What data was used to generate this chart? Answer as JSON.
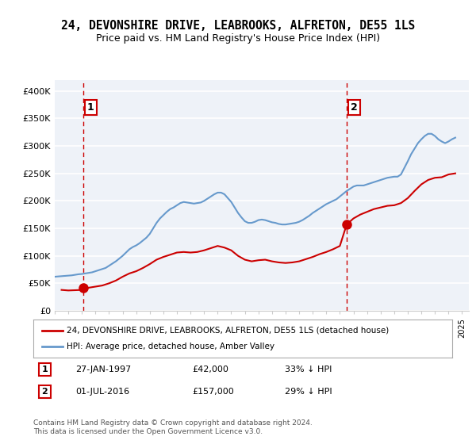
{
  "title": "24, DEVONSHIRE DRIVE, LEABROOKS, ALFRETON, DE55 1LS",
  "subtitle": "Price paid vs. HM Land Registry's House Price Index (HPI)",
  "title_fontsize": 10.5,
  "subtitle_fontsize": 9,
  "ylabel_values": [
    0,
    50000,
    100000,
    150000,
    200000,
    250000,
    300000,
    350000,
    400000
  ],
  "ylabel_labels": [
    "£0",
    "£50K",
    "£100K",
    "£150K",
    "£200K",
    "£250K",
    "£300K",
    "£350K",
    "£400K"
  ],
  "ylim": [
    0,
    420000
  ],
  "xlim_start": 1995.0,
  "xlim_end": 2025.5,
  "purchase1_date": 1997.08,
  "purchase1_price": 42000,
  "purchase1_label": "1",
  "purchase2_date": 2016.5,
  "purchase2_price": 157000,
  "purchase2_label": "2",
  "property_color": "#cc0000",
  "hpi_color": "#6699cc",
  "dashed_color": "#cc0000",
  "bg_color": "#eef2f8",
  "grid_color": "#ffffff",
  "legend1_text": "24, DEVONSHIRE DRIVE, LEABROOKS, ALFRETON, DE55 1LS (detached house)",
  "legend2_text": "HPI: Average price, detached house, Amber Valley",
  "info1_num": "1",
  "info1_date": "27-JAN-1997",
  "info1_price": "£42,000",
  "info1_hpi": "33% ↓ HPI",
  "info2_num": "2",
  "info2_date": "01-JUL-2016",
  "info2_price": "£157,000",
  "info2_hpi": "29% ↓ HPI",
  "footnote": "Contains HM Land Registry data © Crown copyright and database right 2024.\nThis data is licensed under the Open Government Licence v3.0.",
  "hpi_x": [
    1995.0,
    1995.25,
    1995.5,
    1995.75,
    1996.0,
    1996.25,
    1996.5,
    1996.75,
    1997.0,
    1997.25,
    1997.5,
    1997.75,
    1998.0,
    1998.25,
    1998.5,
    1998.75,
    1999.0,
    1999.25,
    1999.5,
    1999.75,
    2000.0,
    2000.25,
    2000.5,
    2000.75,
    2001.0,
    2001.25,
    2001.5,
    2001.75,
    2002.0,
    2002.25,
    2002.5,
    2002.75,
    2003.0,
    2003.25,
    2003.5,
    2003.75,
    2004.0,
    2004.25,
    2004.5,
    2004.75,
    2005.0,
    2005.25,
    2005.5,
    2005.75,
    2006.0,
    2006.25,
    2006.5,
    2006.75,
    2007.0,
    2007.25,
    2007.5,
    2007.75,
    2008.0,
    2008.25,
    2008.5,
    2008.75,
    2009.0,
    2009.25,
    2009.5,
    2009.75,
    2010.0,
    2010.25,
    2010.5,
    2010.75,
    2011.0,
    2011.25,
    2011.5,
    2011.75,
    2012.0,
    2012.25,
    2012.5,
    2012.75,
    2013.0,
    2013.25,
    2013.5,
    2013.75,
    2014.0,
    2014.25,
    2014.5,
    2014.75,
    2015.0,
    2015.25,
    2015.5,
    2015.75,
    2016.0,
    2016.25,
    2016.5,
    2016.75,
    2017.0,
    2017.25,
    2017.5,
    2017.75,
    2018.0,
    2018.25,
    2018.5,
    2018.75,
    2019.0,
    2019.25,
    2019.5,
    2019.75,
    2020.0,
    2020.25,
    2020.5,
    2020.75,
    2021.0,
    2021.25,
    2021.5,
    2021.75,
    2022.0,
    2022.25,
    2022.5,
    2022.75,
    2023.0,
    2023.25,
    2023.5,
    2023.75,
    2024.0,
    2024.25,
    2024.5
  ],
  "hpi_y": [
    62000,
    62500,
    63000,
    63500,
    64000,
    64500,
    65500,
    66500,
    67000,
    68000,
    69000,
    70000,
    72000,
    74000,
    76000,
    78000,
    82000,
    86000,
    90000,
    95000,
    100000,
    106000,
    112000,
    116000,
    119000,
    123000,
    128000,
    133000,
    140000,
    150000,
    160000,
    168000,
    174000,
    180000,
    185000,
    188000,
    192000,
    196000,
    198000,
    197000,
    196000,
    195000,
    196000,
    197000,
    200000,
    204000,
    208000,
    212000,
    215000,
    215000,
    212000,
    205000,
    198000,
    188000,
    178000,
    170000,
    163000,
    160000,
    160000,
    162000,
    165000,
    166000,
    165000,
    163000,
    161000,
    160000,
    158000,
    157000,
    157000,
    158000,
    159000,
    160000,
    162000,
    165000,
    169000,
    173000,
    178000,
    182000,
    186000,
    190000,
    194000,
    197000,
    200000,
    203000,
    208000,
    213000,
    218000,
    222000,
    226000,
    228000,
    228000,
    228000,
    230000,
    232000,
    234000,
    236000,
    238000,
    240000,
    242000,
    243000,
    244000,
    244000,
    248000,
    260000,
    272000,
    285000,
    295000,
    305000,
    312000,
    318000,
    322000,
    322000,
    318000,
    312000,
    308000,
    305000,
    308000,
    312000,
    315000
  ],
  "prop_x": [
    1995.5,
    1996.0,
    1996.5,
    1997.0,
    1997.5,
    1998.0,
    1998.5,
    1999.0,
    1999.5,
    2000.0,
    2000.5,
    2001.0,
    2001.5,
    2002.0,
    2002.5,
    2003.0,
    2003.5,
    2004.0,
    2004.5,
    2005.0,
    2005.5,
    2006.0,
    2006.5,
    2007.0,
    2007.5,
    2008.0,
    2008.5,
    2009.0,
    2009.5,
    2010.0,
    2010.5,
    2011.0,
    2011.5,
    2012.0,
    2012.5,
    2013.0,
    2013.5,
    2014.0,
    2014.5,
    2015.0,
    2015.5,
    2016.0,
    2016.5,
    2017.0,
    2017.5,
    2018.0,
    2018.5,
    2019.0,
    2019.5,
    2020.0,
    2020.5,
    2021.0,
    2021.5,
    2022.0,
    2022.5,
    2023.0,
    2023.5,
    2024.0,
    2024.5
  ],
  "prop_y": [
    38000,
    37000,
    37500,
    38000,
    42000,
    44000,
    46000,
    50000,
    55000,
    62000,
    68000,
    72000,
    78000,
    85000,
    93000,
    98000,
    102000,
    106000,
    107000,
    106000,
    107000,
    110000,
    114000,
    118000,
    115000,
    110000,
    100000,
    93000,
    90000,
    92000,
    93000,
    90000,
    88000,
    87000,
    88000,
    90000,
    94000,
    98000,
    103000,
    107000,
    112000,
    118000,
    157000,
    168000,
    175000,
    180000,
    185000,
    188000,
    191000,
    192000,
    196000,
    205000,
    218000,
    230000,
    238000,
    242000,
    243000,
    248000,
    250000
  ]
}
